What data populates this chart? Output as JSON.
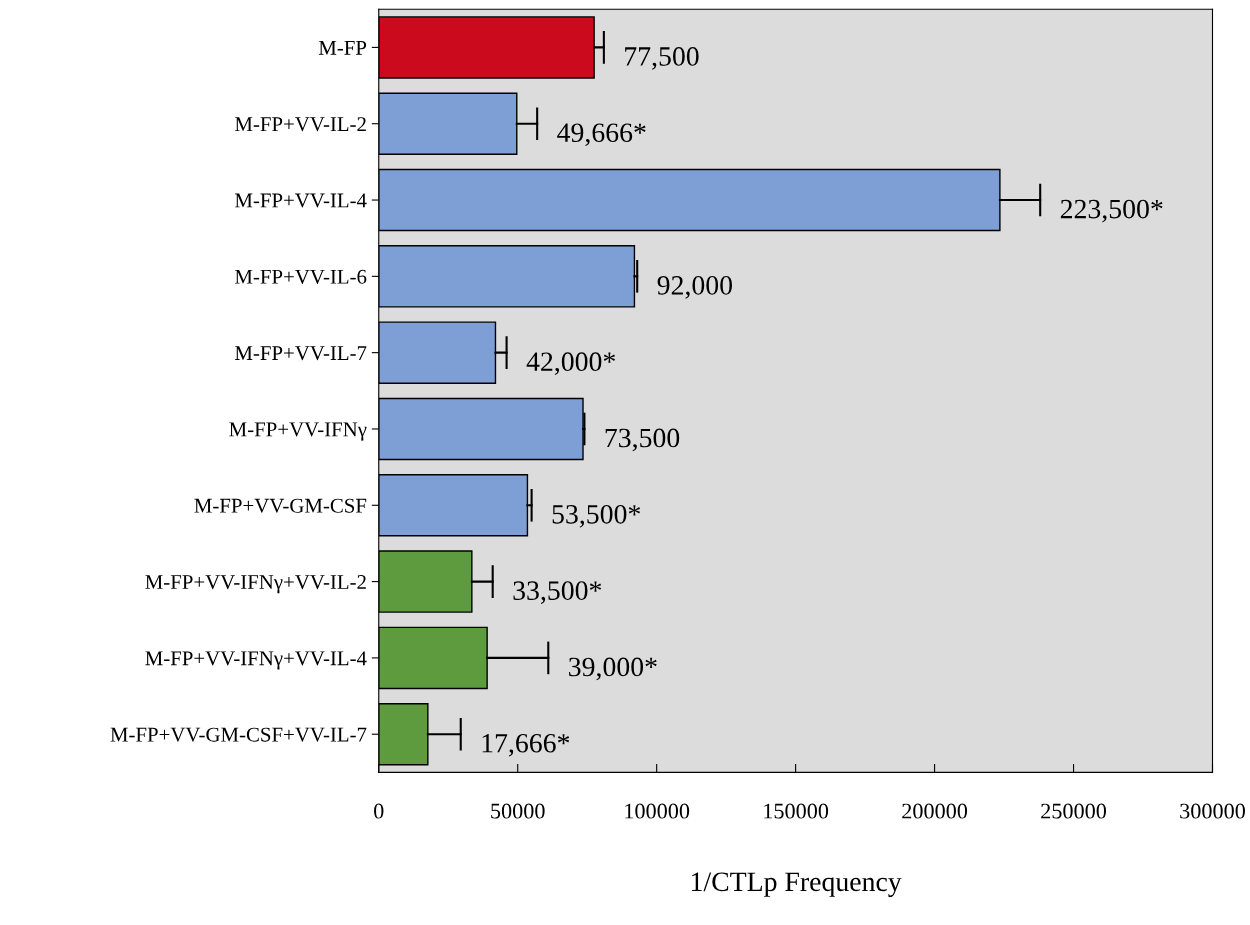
{
  "chart_data": {
    "type": "bar",
    "orientation": "horizontal",
    "xlabel": "1/CTLp Frequency",
    "categories": [
      "M-FP",
      "M-FP+VV-IL-2",
      "M-FP+VV-IL-4",
      "M-FP+VV-IL-6",
      "M-FP+VV-IL-7",
      "M-FP+VV-IFNγ",
      "M-FP+VV-GM-CSF",
      "M-FP+VV-IFNγ+VV-IL-2",
      "M-FP+VV-IFNγ+VV-IL-4",
      "M-FP+VV-GM-CSF+VV-IL-7"
    ],
    "values": [
      77500,
      49666,
      223500,
      92000,
      42000,
      73500,
      53500,
      33500,
      39000,
      17666
    ],
    "colors": [
      "#cc0a1e",
      "#7d9fd6",
      "#7d9fd6",
      "#7d9fd6",
      "#7d9fd6",
      "#7d9fd6",
      "#7d9fd6",
      "#5e9a3e",
      "#5e9a3e",
      "#5e9a3e"
    ],
    "errors": [
      [
        77500,
        81000
      ],
      [
        49666,
        57000
      ],
      [
        223500,
        238000
      ],
      [
        92000,
        93000
      ],
      [
        42000,
        46000
      ],
      [
        73500,
        74000
      ],
      [
        53500,
        55000
      ],
      [
        33500,
        41000
      ],
      [
        39000,
        61000
      ],
      [
        17666,
        29500
      ]
    ],
    "value_labels": [
      "77,500",
      "49,666*",
      "223,500*",
      "92,000",
      "42,000*",
      "73,500",
      "53,500*",
      "33,500*",
      "39,000*",
      "17,666*"
    ],
    "xlim": [
      0,
      300000
    ],
    "xticks": [
      0,
      50000,
      100000,
      150000,
      200000,
      250000,
      300000
    ],
    "grid": false,
    "legend": false
  }
}
